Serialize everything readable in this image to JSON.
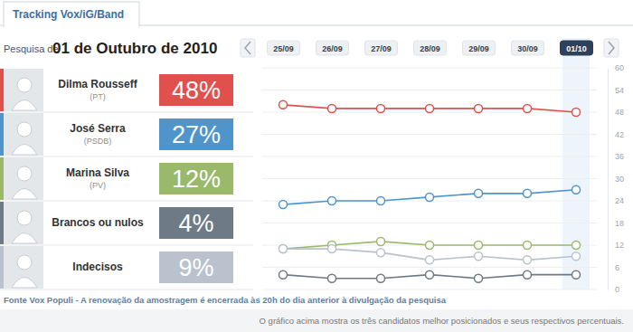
{
  "chart_data": {
    "type": "line",
    "title": "01 de Outubro de 2010",
    "annotations": [
      "Tracking Vox/iG/Band",
      "Pesquisa de",
      "Fonte Vox Populi - A renovação da amostragem é encerrada às 20h do dia anterior à divulgação da pesquisa",
      "O gráfico acima mostra os três candidatos melhor posicionados e seus respectivos percentuais."
    ],
    "categories": [
      "25/09",
      "26/09",
      "27/09",
      "28/09",
      "29/09",
      "30/09",
      "01/10"
    ],
    "series": [
      {
        "name": "Dilma Rousseff",
        "party": "(PT)",
        "color": "#e0504d",
        "marker": "circle",
        "values": [
          50,
          49,
          49,
          49,
          49,
          49,
          48
        ],
        "value_labels": [
          null,
          null,
          null,
          null,
          null,
          null,
          "48%"
        ]
      },
      {
        "name": "José Serra",
        "party": "(PSDB)",
        "color": "#4f94cb",
        "marker": "circle",
        "values": [
          23,
          24,
          24,
          25,
          26,
          26,
          27
        ],
        "value_labels": [
          null,
          null,
          null,
          null,
          null,
          null,
          "27%"
        ]
      },
      {
        "name": "Marina Silva",
        "party": "(PV)",
        "color": "#9ab96b",
        "marker": "circle",
        "values": [
          11,
          12,
          13,
          12,
          12,
          12,
          12
        ],
        "value_labels": [
          null,
          null,
          null,
          null,
          null,
          null,
          "12%"
        ]
      },
      {
        "name": "Brancos ou nulos",
        "color": "#6e7a86",
        "marker": "circle",
        "values": [
          4,
          3,
          3,
          4,
          3,
          4,
          4
        ],
        "value_labels": [
          null,
          null,
          null,
          null,
          null,
          null,
          "4%"
        ]
      },
      {
        "name": "Indecisos",
        "color": "#b9c2cd",
        "marker": "circle",
        "values": [
          11,
          11,
          10,
          8,
          9,
          8,
          9
        ],
        "value_labels": [
          null,
          null,
          null,
          null,
          null,
          null,
          "9%"
        ]
      }
    ],
    "ylim": [
      0,
      60
    ],
    "yticks": [
      0,
      6,
      12,
      18,
      24,
      30,
      36,
      42,
      48,
      54,
      60
    ],
    "grid": true
  }
}
